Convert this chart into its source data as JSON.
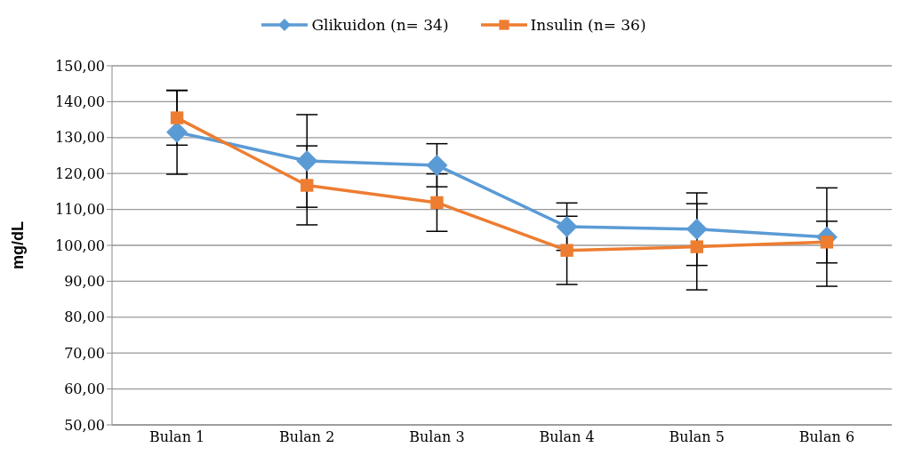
{
  "chart_data": {
    "type": "line",
    "ylabel": "mg/dL",
    "categories": [
      "Bulan 1",
      "Bulan 2",
      "Bulan 3",
      "Bulan 4",
      "Bulan 5",
      "Bulan 6"
    ],
    "series": [
      {
        "name": "Glikuidon (n= 34)",
        "color": "#5b9bd5",
        "marker": "diamond",
        "values": [
          131.5,
          123.5,
          122.3,
          105.2,
          104.5,
          102.3
        ],
        "errors": [
          11.7,
          12.9,
          6.0,
          6.6,
          10.1,
          13.7
        ]
      },
      {
        "name": "Insulin (n= 36)",
        "color": "#ed7d31",
        "marker": "square",
        "values": [
          135.5,
          116.7,
          111.9,
          98.6,
          99.6,
          100.9
        ],
        "errors": [
          7.6,
          11.0,
          8.0,
          9.5,
          12.0,
          5.8
        ]
      }
    ],
    "ylim": [
      50,
      150
    ],
    "yticks": [
      {
        "value": 50,
        "label": "50,00"
      },
      {
        "value": 60,
        "label": "60,00"
      },
      {
        "value": 70,
        "label": "70,00"
      },
      {
        "value": 80,
        "label": "80,00"
      },
      {
        "value": 90,
        "label": "90,00"
      },
      {
        "value": 100,
        "label": "100,00"
      },
      {
        "value": 110,
        "label": "110,00"
      },
      {
        "value": 120,
        "label": "120,00"
      },
      {
        "value": 130,
        "label": "130,00"
      },
      {
        "value": 140,
        "label": "140,00"
      },
      {
        "value": 150,
        "label": "150,00"
      }
    ],
    "grid": "y",
    "legend": "top",
    "line_style": "solid"
  }
}
